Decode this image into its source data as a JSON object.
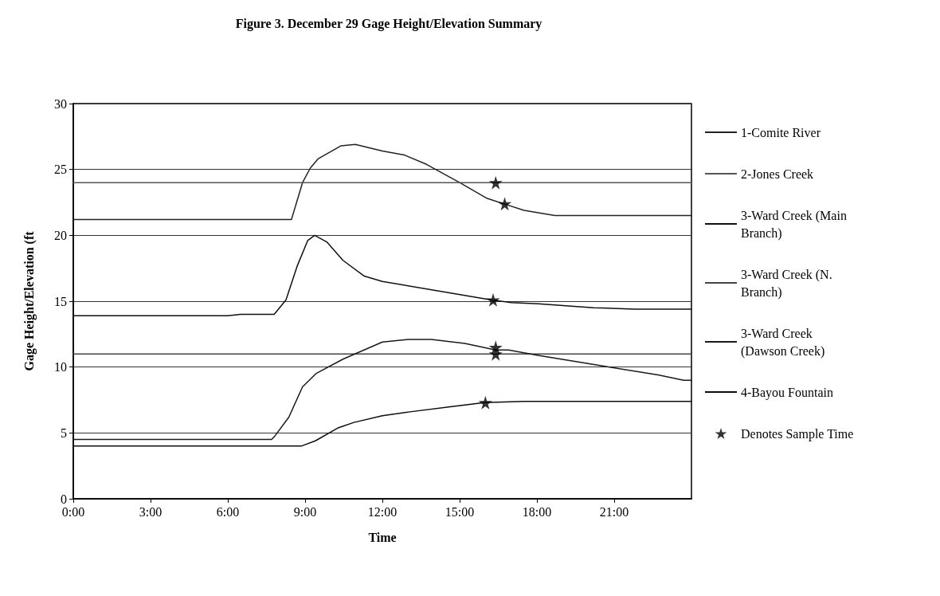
{
  "chart_data": {
    "type": "line",
    "title": "Figure 3. December 29 Gage Height/Elevation Summary",
    "xlabel": "Time",
    "ylabel": "Gage Height/Elevation (ft",
    "xlim": [
      0,
      24
    ],
    "xticks": [
      {
        "value": 0,
        "label": "0:00"
      },
      {
        "value": 3,
        "label": "3:00"
      },
      {
        "value": 6,
        "label": "6:00"
      },
      {
        "value": 9,
        "label": "9:00"
      },
      {
        "value": 12,
        "label": "12:00"
      },
      {
        "value": 15,
        "label": "15:00"
      },
      {
        "value": 18,
        "label": "18:00"
      },
      {
        "value": 21,
        "label": "21:00"
      }
    ],
    "ylim": [
      0,
      30
    ],
    "yticks": [
      0,
      5,
      10,
      15,
      20,
      25,
      30
    ],
    "grid": "y",
    "legend": "right",
    "line_style": "solid",
    "series": [
      {
        "name": "1-Comite River",
        "color": "#222222",
        "x": [
          0,
          8.47,
          8.9,
          9.2,
          9.5,
          10.4,
          10.95,
          12.0,
          12.85,
          13.7,
          15.0,
          16.07,
          16.7,
          17.5,
          18.7,
          24
        ],
        "values": [
          21.2,
          21.2,
          24.0,
          25.1,
          25.8,
          26.8,
          26.9,
          26.4,
          26.1,
          25.4,
          24.0,
          22.8,
          22.4,
          21.9,
          21.5,
          21.5
        ]
      },
      {
        "name": "2-Jones Creek",
        "color": "#555555",
        "x": [
          0,
          24
        ],
        "values": [
          24.0,
          24.0
        ]
      },
      {
        "name": "3-Ward Creek (Main Branch)",
        "color": "#111111",
        "x": [
          0,
          6.0,
          6.5,
          7.8,
          8.26,
          8.7,
          9.1,
          9.37,
          9.84,
          10.47,
          11.3,
          12.0,
          14.1,
          16.2,
          17.0,
          18.05,
          20.2,
          21.8,
          24
        ],
        "values": [
          13.9,
          13.9,
          14.0,
          14.0,
          15.1,
          17.7,
          19.6,
          20.0,
          19.5,
          18.1,
          16.9,
          16.5,
          15.8,
          15.1,
          14.9,
          14.8,
          14.5,
          14.4,
          14.4
        ]
      },
      {
        "name": "3-Ward Creek (N. Branch)",
        "color": "#444444",
        "x": [
          0,
          24
        ],
        "values": [
          11.0,
          11.0
        ]
      },
      {
        "name": "3-Ward Creek (Dawson Creek)",
        "color": "#1a1a1a",
        "x": [
          0,
          7.7,
          7.84,
          8.37,
          8.9,
          9.42,
          10.47,
          12.0,
          13.0,
          13.9,
          15.2,
          16.4,
          16.9,
          18.0,
          20.5,
          22.7,
          23.7,
          24
        ],
        "values": [
          4.5,
          4.5,
          4.8,
          6.2,
          8.5,
          9.5,
          10.6,
          11.9,
          12.1,
          12.1,
          11.8,
          11.3,
          11.3,
          10.9,
          10.1,
          9.4,
          9.0,
          9.0
        ]
      },
      {
        "name": "4-Bayou Fountain",
        "color": "#0d0d0d",
        "x": [
          0,
          8.85,
          9.4,
          10.3,
          10.9,
          12.0,
          13.07,
          14.7,
          15.96,
          17.5,
          24
        ],
        "values": [
          4.0,
          4.0,
          4.4,
          5.4,
          5.8,
          6.3,
          6.6,
          7.0,
          7.3,
          7.4,
          7.4
        ]
      },
      {
        "name": "Denotes Sample Time",
        "type": "scatter",
        "marker": "star",
        "color": "#000000",
        "x": [
          16.4,
          16.75,
          16.3,
          16.4,
          16.4,
          16.0
        ],
        "values": [
          24.0,
          22.4,
          15.1,
          11.5,
          11.0,
          7.3
        ]
      }
    ]
  }
}
